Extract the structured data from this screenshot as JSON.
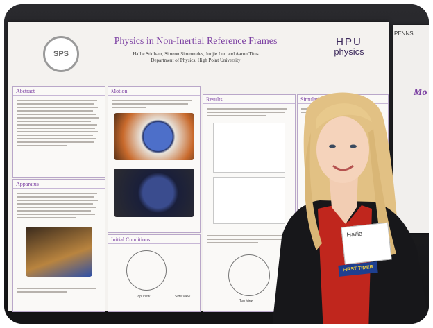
{
  "poster": {
    "logo_text": "SPS",
    "title": "Physics in Non-Inertial Reference Frames",
    "authors": "Hallie Stidham, Simeon Simeonides, Junjie Luo and Aaron Titus",
    "department": "Department of Physics, High Point University",
    "hpu_logo_line1": "HPU",
    "hpu_logo_line2": "physics",
    "sections": {
      "abstract": "Abstract",
      "apparatus": "Apparatus",
      "motion": "Motion",
      "initial_conditions": "Initial Conditions",
      "results": "Results",
      "simulation": "Simulation"
    },
    "captions": {
      "top_view": "Top View",
      "side_view": "Side View"
    }
  },
  "neighbor_poster": {
    "header_text": "PENNS",
    "title_fragment": "Mo"
  },
  "badge": {
    "name": "Hallie",
    "tag": "FIRST TIMER"
  },
  "colors": {
    "poster_title": "#7b3fa2",
    "badge_tag_bg": "#1e3f8f",
    "badge_tag_text": "#f4d23d",
    "shirt": "#c0261d",
    "hair": "#e5c58a"
  }
}
